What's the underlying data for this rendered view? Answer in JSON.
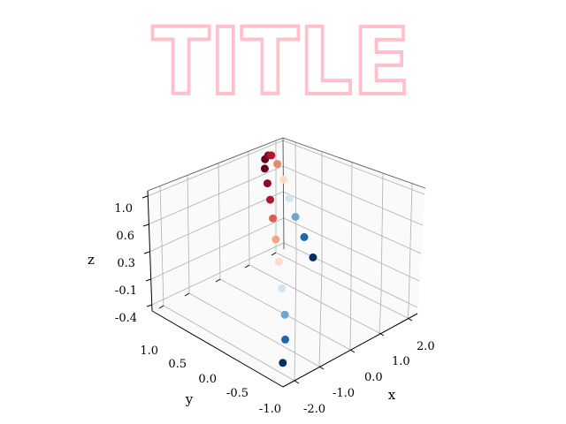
{
  "chart_data": {
    "type": "scatter",
    "projection": "3d",
    "title": "TITLE",
    "title_color": "#ffc0cb",
    "xlabel": "x",
    "ylabel": "y",
    "zlabel": "z",
    "xticks": [
      "-2.0",
      "-1.0",
      "0.0",
      "1.0",
      "2.0"
    ],
    "yticks": [
      "-1.0",
      "-0.5",
      "0.0",
      "0.5",
      "1.0"
    ],
    "zticks": [
      "-0.4",
      "-0.1",
      "0.3",
      "0.6",
      "1.0"
    ],
    "xlim": [
      -2.4,
      2.4
    ],
    "ylim": [
      -1.2,
      1.2
    ],
    "zlim": [
      -0.45,
      1.1
    ],
    "grid": true,
    "colormap": "RdBu_r",
    "points": [
      {
        "x": -2.0,
        "y": -1.0,
        "z": -0.3,
        "color": "#053061"
      },
      {
        "x": -1.7,
        "y": -0.9,
        "z": -0.1,
        "color": "#2166ac"
      },
      {
        "x": -1.4,
        "y": -0.75,
        "z": 0.1,
        "color": "#6fa6d1"
      },
      {
        "x": -1.1,
        "y": -0.55,
        "z": 0.3,
        "color": "#d1e5f0"
      },
      {
        "x": -0.8,
        "y": -0.35,
        "z": 0.5,
        "color": "#fddbc7"
      },
      {
        "x": -0.5,
        "y": -0.15,
        "z": 0.65,
        "color": "#f4a582"
      },
      {
        "x": -0.2,
        "y": 0.05,
        "z": 0.78,
        "color": "#d6604d"
      },
      {
        "x": 0.1,
        "y": 0.25,
        "z": 0.88,
        "color": "#b2182b"
      },
      {
        "x": 0.4,
        "y": 0.45,
        "z": 0.95,
        "color": "#8b0a26"
      },
      {
        "x": 0.7,
        "y": 0.65,
        "z": 1.0,
        "color": "#67001f"
      },
      {
        "x": 1.0,
        "y": 0.8,
        "z": 1.0,
        "color": "#67001f"
      },
      {
        "x": 1.3,
        "y": 0.9,
        "z": 0.95,
        "color": "#8b0a26"
      },
      {
        "x": 1.6,
        "y": 1.0,
        "z": 0.85,
        "color": "#b2182b"
      },
      {
        "x": 1.8,
        "y": 1.0,
        "z": 0.7,
        "color": "#e8896a"
      },
      {
        "x": 1.9,
        "y": 0.95,
        "z": 0.5,
        "color": "#fddbc7"
      },
      {
        "x": 1.9,
        "y": 0.85,
        "z": 0.3,
        "color": "#d1e5f0"
      },
      {
        "x": 1.9,
        "y": 0.75,
        "z": 0.1,
        "color": "#6fa6d1"
      },
      {
        "x": 1.9,
        "y": 0.6,
        "z": -0.1,
        "color": "#2166ac"
      },
      {
        "x": 1.9,
        "y": 0.45,
        "z": -0.3,
        "color": "#053061"
      }
    ]
  }
}
